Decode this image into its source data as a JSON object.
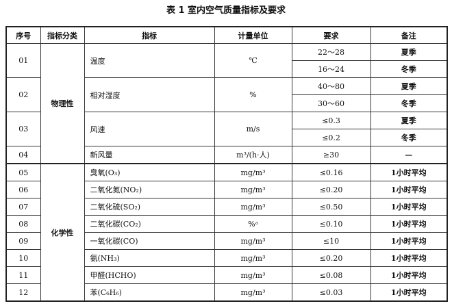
{
  "title": "表 1  室内空气质量指标及要求",
  "headers": [
    "序号",
    "指标分类",
    "指标",
    "计量单位",
    "要求",
    "备注"
  ],
  "categories": {
    "physical": "物理性",
    "chemical": "化学性"
  },
  "rows": [
    {
      "no": "01",
      "indicator": "温度",
      "unit": "℃",
      "reqs": [
        {
          "value": "22～28",
          "note": "夏季"
        },
        {
          "value": "16～24",
          "note": "冬季"
        }
      ]
    },
    {
      "no": "02",
      "indicator": "相对湿度",
      "unit": "%",
      "reqs": [
        {
          "value": "40～80",
          "note": "夏季"
        },
        {
          "value": "30～60",
          "note": "冬季"
        }
      ]
    },
    {
      "no": "03",
      "indicator": "风速",
      "unit": "m/s",
      "reqs": [
        {
          "value": "≤0.3",
          "note": "夏季"
        },
        {
          "value": "≤0.2",
          "note": "冬季"
        }
      ]
    },
    {
      "no": "04",
      "indicator": "新风量",
      "unit": "m³/(h·人)",
      "reqs": [
        {
          "value": "≥30",
          "note": "—"
        }
      ]
    },
    {
      "no": "05",
      "indicator": "臭氧(O₃)",
      "unit": "mg/m³",
      "reqs": [
        {
          "value": "≤0.16",
          "note": "1小时平均"
        }
      ]
    },
    {
      "no": "06",
      "indicator": "二氧化氮(NO₂)",
      "unit": "mg/m³",
      "reqs": [
        {
          "value": "≤0.20",
          "note": "1小时平均"
        }
      ]
    },
    {
      "no": "07",
      "indicator": "二氧化硫(SO₂)",
      "unit": "mg/m³",
      "reqs": [
        {
          "value": "≤0.50",
          "note": "1小时平均"
        }
      ]
    },
    {
      "no": "08",
      "indicator": "二氧化碳(CO₂)",
      "unit": "%ᵃ",
      "reqs": [
        {
          "value": "≤0.10",
          "note": "1小时平均"
        }
      ]
    },
    {
      "no": "09",
      "indicator": "一氧化碳(CO)",
      "unit": "mg/m³",
      "reqs": [
        {
          "value": "≤10",
          "note": "1小时平均"
        }
      ]
    },
    {
      "no": "10",
      "indicator": "氨(NH₃)",
      "unit": "mg/m³",
      "reqs": [
        {
          "value": "≤0.20",
          "note": "1小时平均"
        }
      ]
    },
    {
      "no": "11",
      "indicator": "甲醛(HCHO)",
      "unit": "mg/m³",
      "reqs": [
        {
          "value": "≤0.08",
          "note": "1小时平均"
        }
      ]
    },
    {
      "no": "12",
      "indicator": "苯(C₆H₆)",
      "unit": "mg/m³",
      "reqs": [
        {
          "value": "≤0.03",
          "note": "1小时平均"
        }
      ]
    }
  ]
}
